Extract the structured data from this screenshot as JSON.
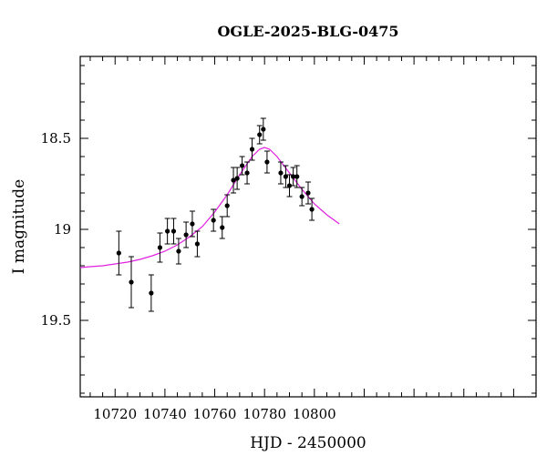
{
  "chart_data": {
    "type": "scatter",
    "title": "OGLE-2025-BLG-0475",
    "xlabel": "HJD - 2450000",
    "ylabel": "I magnitude",
    "xlim": [
      10706,
      10889
    ],
    "ylim": [
      19.92,
      18.05
    ],
    "y_inverted": true,
    "grid": false,
    "xticks": [
      10720,
      10740,
      10760,
      10780,
      10800
    ],
    "xtick_labels": [
      "10720",
      "10740",
      "10760",
      "10780",
      "10800"
    ],
    "yticks": [
      18.5,
      19,
      19.5
    ],
    "ytick_labels": [
      "18.5",
      "19",
      "19.5"
    ],
    "point_color": "#000000",
    "model_color": "#e020e0",
    "series": [
      {
        "kind": "points_with_errorbars",
        "x": [
          10721.5,
          10726.5,
          10734.5,
          10738.0,
          10741.0,
          10743.5,
          10745.5,
          10748.5,
          10751.0,
          10753.0,
          10759.5,
          10763.0,
          10765.0,
          10767.5,
          10769.0,
          10771.0,
          10773.0,
          10775.0,
          10778.0,
          10779.5,
          10781.0,
          10786.5,
          10788.5,
          10790.0,
          10791.5,
          10793.0,
          10795.0,
          10797.5,
          10799.0
        ],
        "y": [
          19.13,
          19.29,
          19.35,
          19.1,
          19.01,
          19.01,
          19.12,
          19.03,
          18.97,
          19.08,
          18.95,
          18.99,
          18.87,
          18.73,
          18.72,
          18.65,
          18.69,
          18.56,
          18.48,
          18.45,
          18.63,
          18.69,
          18.71,
          18.76,
          18.71,
          18.71,
          18.82,
          18.8,
          18.89
        ],
        "yerr": [
          0.12,
          0.14,
          0.1,
          0.08,
          0.07,
          0.07,
          0.07,
          0.07,
          0.07,
          0.07,
          0.06,
          0.06,
          0.06,
          0.07,
          0.06,
          0.05,
          0.06,
          0.06,
          0.05,
          0.06,
          0.06,
          0.06,
          0.06,
          0.06,
          0.05,
          0.06,
          0.05,
          0.06,
          0.06
        ]
      },
      {
        "kind": "model_curve",
        "x": [
          10706,
          10710,
          10715,
          10720,
          10725,
          10730,
          10735,
          10740,
          10745,
          10750,
          10755,
          10760,
          10765,
          10770,
          10775,
          10778,
          10780,
          10782,
          10785,
          10790,
          10795,
          10800,
          10805,
          10810
        ],
        "y": [
          19.21,
          19.205,
          19.2,
          19.19,
          19.18,
          19.165,
          19.145,
          19.12,
          19.085,
          19.04,
          18.985,
          18.905,
          18.81,
          18.7,
          18.6,
          18.56,
          18.55,
          18.56,
          18.6,
          18.69,
          18.78,
          18.86,
          18.92,
          18.97
        ]
      }
    ]
  }
}
